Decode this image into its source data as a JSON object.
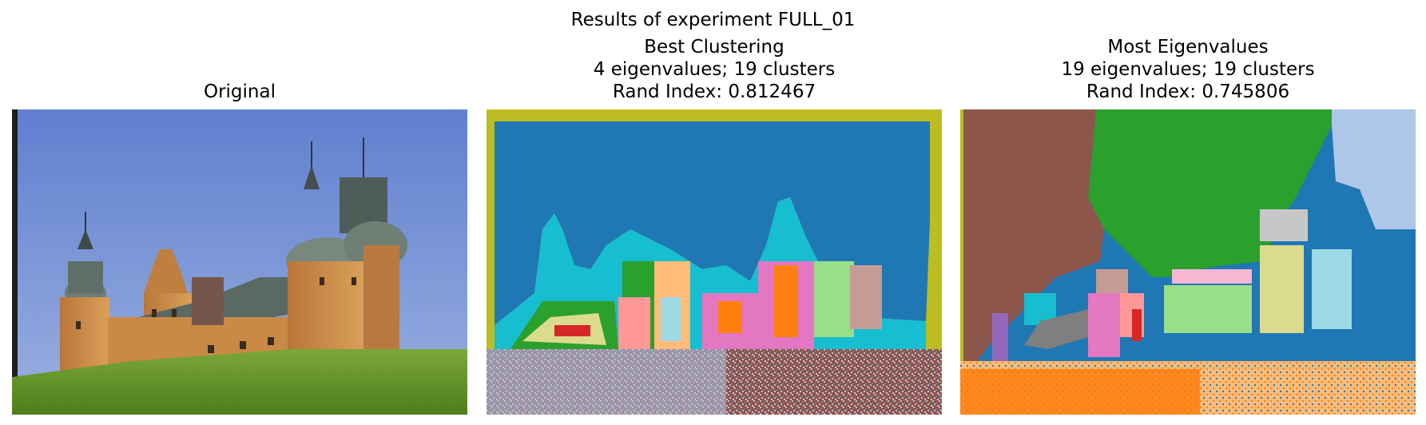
{
  "figure": {
    "suptitle": "Results of experiment FULL_01",
    "panels": [
      {
        "lines": [
          "Original"
        ]
      },
      {
        "lines": [
          "Best Clustering",
          "4 eigenvalues; 19 clusters",
          "Rand Index: 0.812467"
        ]
      },
      {
        "lines": [
          "Most Eigenvalues",
          "19 eigenvalues; 19 clusters",
          "Rand Index: 0.745806"
        ]
      }
    ]
  },
  "palette": {
    "sky": "#6f8fd6",
    "grass": "#6a9a2c",
    "wall": "#c98a45",
    "roof": "#6d7a74",
    "tab_blue": "#1f77b4",
    "tab_olive": "#bcbd22",
    "tab_cyan": "#17becf",
    "tab_green": "#2ca02c",
    "tab_pink": "#e377c2",
    "tab_purple": "#9467bd",
    "tab_orange": "#ff7f0e",
    "tab_brown": "#8c564b",
    "tab_red": "#d62728",
    "tab_gray": "#7f7f7f",
    "light_blue": "#aec7e8",
    "light_orange": "#ffbb78",
    "light_green": "#98df8a",
    "light_pink": "#f7b6d2",
    "light_red": "#ff9896",
    "light_gray": "#c7c7c7",
    "light_olive": "#dbdb8d",
    "light_brown": "#c49c94",
    "light_cyan": "#9edae5"
  }
}
